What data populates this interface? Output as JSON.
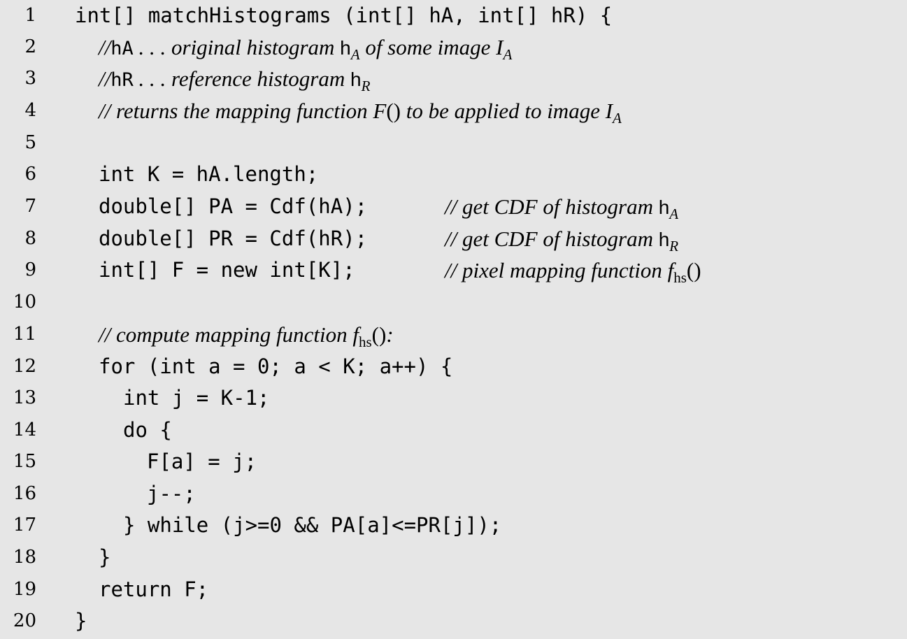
{
  "lines": [
    {
      "n": "1",
      "code": "int[] matchHistograms (int[] hA, int[] hR) {"
    },
    {
      "n": "2",
      "comment": {
        "slashes": "//",
        "var": "hA",
        "text": " . . . original histogram ",
        "sym": "h",
        "sub": "A",
        "tail": " of some image ",
        "img": "I",
        "img_sub": "A"
      }
    },
    {
      "n": "3",
      "comment": {
        "slashes": "//",
        "var": "hR",
        "text": " . . . reference histogram ",
        "sym": "h",
        "sub": "R"
      }
    },
    {
      "n": "4",
      "comment": {
        "slashes": "//",
        "text": " returns the mapping function ",
        "fn": "F",
        "paren": "()",
        "tail": " to be applied to image ",
        "img": "I",
        "img_sub": "A"
      }
    },
    {
      "n": "5"
    },
    {
      "n": "6",
      "code": "int K = hA.length;"
    },
    {
      "n": "7",
      "code": "double[] PA = Cdf(hA);",
      "comment": {
        "slashes": "//",
        "text": " get CDF of histogram ",
        "sym": "h",
        "sub": "A"
      }
    },
    {
      "n": "8",
      "code": "double[] PR = Cdf(hR);",
      "comment": {
        "slashes": "//",
        "text": " get CDF of histogram ",
        "sym": "h",
        "sub": "R"
      }
    },
    {
      "n": "9",
      "code": "int[] F = new int[K];",
      "comment": {
        "slashes": "//",
        "text": " pixel mapping function ",
        "fn": "f",
        "fn_sub": "hs",
        "paren": "()"
      }
    },
    {
      "n": "10"
    },
    {
      "n": "11",
      "comment": {
        "slashes": "//",
        "text": " compute mapping function ",
        "fn": "f",
        "fn_sub": "hs",
        "paren": "()",
        "tail": ":"
      }
    },
    {
      "n": "12",
      "code": "for (int a = 0; a < K; a++) {"
    },
    {
      "n": "13",
      "code": "int j = K-1;"
    },
    {
      "n": "14",
      "code": "do {"
    },
    {
      "n": "15",
      "code": "F[a] = j;"
    },
    {
      "n": "16",
      "code": "j--;"
    },
    {
      "n": "17",
      "code": "} while (j>=0 && PA[a]<=PR[j]);"
    },
    {
      "n": "18",
      "code": "}"
    },
    {
      "n": "19",
      "code": "return F;"
    },
    {
      "n": "20",
      "code": "}"
    }
  ]
}
